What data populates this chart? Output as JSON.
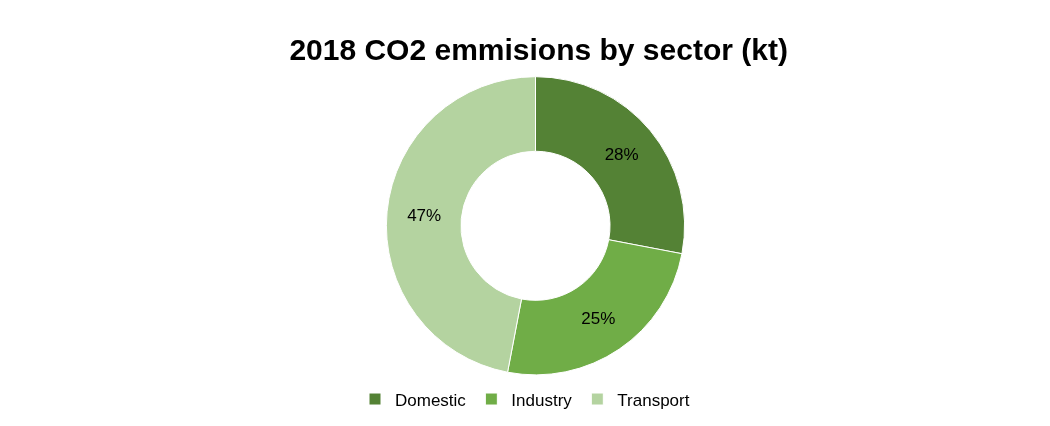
{
  "chart_data": {
    "type": "donut",
    "title": "2018 CO2 emmisions by sector (kt)",
    "categories": [
      "Domestic",
      "Industry",
      "Transport"
    ],
    "values": [
      28,
      25,
      47
    ],
    "colors": [
      "#548235",
      "#70ad47",
      "#b4d3a0"
    ],
    "value_labels": [
      "28%",
      "25%",
      "47%"
    ],
    "legend": "bottom"
  }
}
